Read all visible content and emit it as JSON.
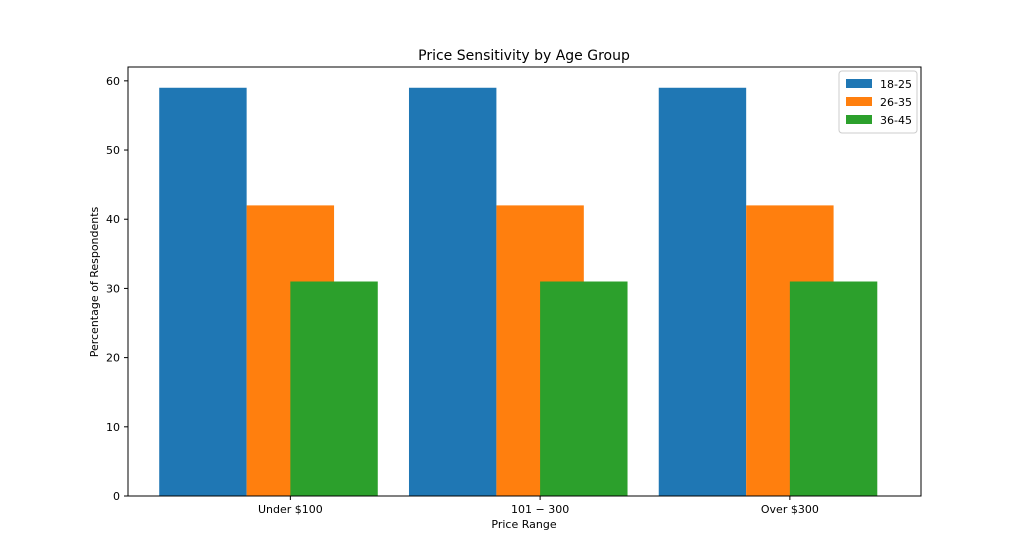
{
  "chart_data": {
    "type": "bar",
    "title": "Price Sensitivity by Age Group",
    "xlabel": "Price Range",
    "ylabel": "Percentage of Respondents",
    "categories": [
      "Under $100",
      "101 − 300",
      "Over $300"
    ],
    "series": [
      {
        "name": "18-25",
        "color": "#1f77b4",
        "values": [
          59,
          59,
          59
        ]
      },
      {
        "name": "26-35",
        "color": "#ff7f0e",
        "values": [
          42,
          42,
          42
        ]
      },
      {
        "name": "36-45",
        "color": "#2ca02c",
        "values": [
          31,
          31,
          31
        ]
      }
    ],
    "ylim": [
      0,
      62
    ],
    "yticks": [
      0,
      10,
      20,
      30,
      40,
      50,
      60
    ],
    "grid": false,
    "legend_position": "top-right"
  }
}
